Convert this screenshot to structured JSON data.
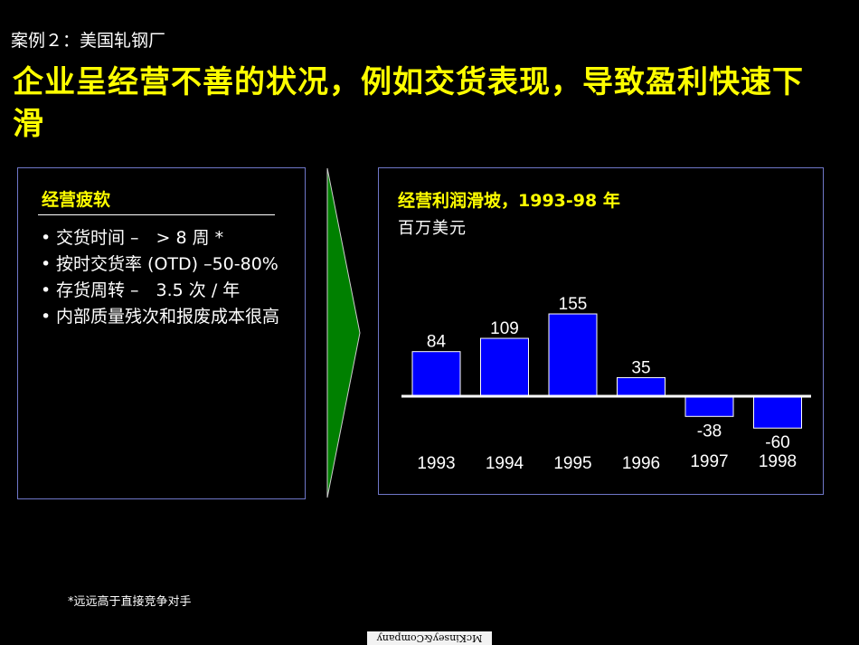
{
  "header": {
    "case_label": "案例２：美国轧钢厂",
    "title": "企业呈经营不善的状况，例如交货表现，导致盈利快速下滑"
  },
  "left_panel": {
    "title": "经营疲软",
    "bullets": [
      "交货时间 –　> 8 周 *",
      "按时交货率 (OTD) –50-80%",
      "存货周转 –　3.5 次 / 年",
      "内部质量残次和报废成本很高"
    ]
  },
  "chart": {
    "title": "经营利润滑坡，1993-98 年",
    "unit": "百万美元"
  },
  "chart_data": {
    "type": "bar",
    "categories": [
      "1993",
      "1994",
      "1995",
      "1996",
      "1997",
      "1998"
    ],
    "values": [
      84,
      109,
      155,
      35,
      -38,
      -60
    ],
    "value_labels": [
      "84",
      "109",
      "155",
      "35",
      "-38",
      "-60"
    ],
    "title": "经营利润滑坡，1993-98 年",
    "ylabel": "百万美元",
    "grid": false,
    "bar_color": "#0000ff"
  },
  "footnote": "*远远高于直接竞争对手",
  "logo": "McKinsey&Company",
  "colors": {
    "title": "#ffff00",
    "panel_border": "#6f77c8",
    "arrow": "#008000",
    "bar": "#0000ff"
  }
}
